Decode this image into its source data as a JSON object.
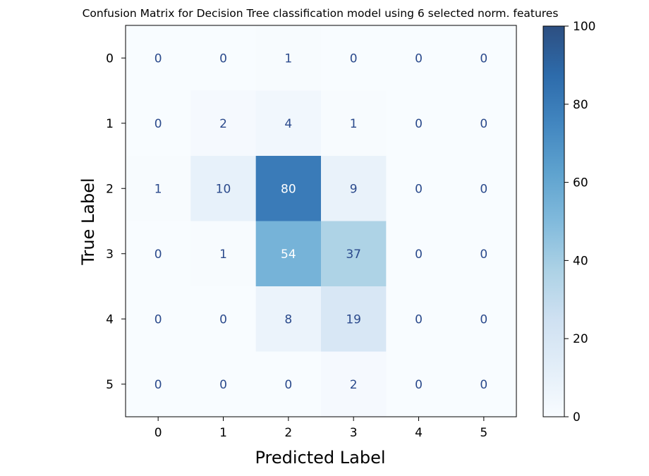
{
  "chart_data": {
    "type": "heatmap",
    "title": "Confusion Matrix for Decision Tree classification model using 6 selected norm. features",
    "xlabel": "Predicted Label",
    "ylabel": "True Label",
    "x_ticks": [
      "0",
      "1",
      "2",
      "3",
      "4",
      "5"
    ],
    "y_ticks": [
      "0",
      "1",
      "2",
      "3",
      "4",
      "5"
    ],
    "matrix": [
      [
        0,
        0,
        1,
        0,
        0,
        0
      ],
      [
        0,
        2,
        4,
        1,
        0,
        0
      ],
      [
        1,
        10,
        80,
        9,
        0,
        0
      ],
      [
        0,
        1,
        54,
        37,
        0,
        0
      ],
      [
        0,
        0,
        8,
        19,
        0,
        0
      ],
      [
        0,
        0,
        0,
        2,
        0,
        0
      ]
    ],
    "colorbar": {
      "min": 0,
      "max": 100,
      "ticks": [
        "0",
        "20",
        "40",
        "60",
        "80",
        "100"
      ],
      "colormap": "Blues",
      "alpha": 0.85
    }
  }
}
